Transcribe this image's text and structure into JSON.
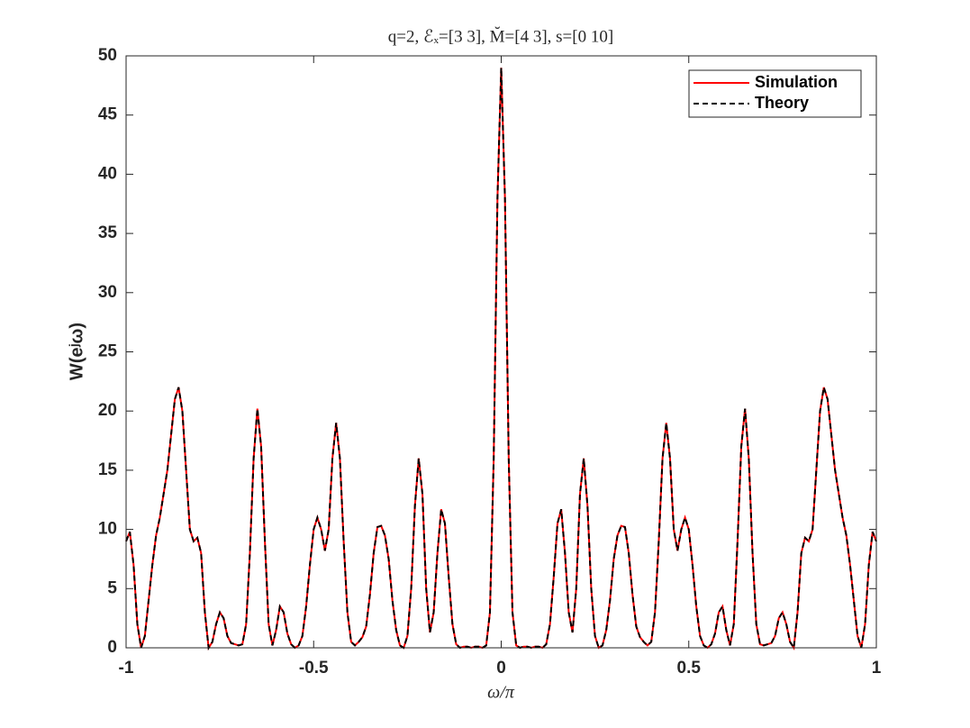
{
  "chart_data": {
    "type": "line",
    "title": "q=2, ℰₓ=[3 3], M̆=[4 3], s=[0 10]",
    "x_label": "ω/π",
    "y_label": "W(eʲω)",
    "xlim": [
      -1,
      1
    ],
    "ylim": [
      0,
      50
    ],
    "xticks": [
      -1,
      -0.5,
      0,
      0.5,
      1
    ],
    "yticks": [
      0,
      5,
      10,
      15,
      20,
      25,
      30,
      35,
      40,
      45,
      50
    ],
    "grid": false,
    "legend": "northeast",
    "x": [
      -1,
      -0.99,
      -0.98,
      -0.97,
      -0.96,
      -0.95,
      -0.94,
      -0.93,
      -0.92,
      -0.91,
      -0.9,
      -0.89,
      -0.88,
      -0.87,
      -0.86,
      -0.85,
      -0.84,
      -0.83,
      -0.82,
      -0.81,
      -0.8,
      -0.79,
      -0.78,
      -0.77,
      -0.76,
      -0.75,
      -0.74,
      -0.73,
      -0.72,
      -0.71,
      -0.7,
      -0.69,
      -0.68,
      -0.67,
      -0.66,
      -0.65,
      -0.64,
      -0.63,
      -0.62,
      -0.61,
      -0.6,
      -0.59,
      -0.58,
      -0.57,
      -0.56,
      -0.55,
      -0.54,
      -0.53,
      -0.52,
      -0.51,
      -0.5,
      -0.49,
      -0.48,
      -0.47,
      -0.46,
      -0.45,
      -0.44,
      -0.43,
      -0.42,
      -0.41,
      -0.4,
      -0.39,
      -0.38,
      -0.37,
      -0.36,
      -0.35,
      -0.34,
      -0.33,
      -0.32,
      -0.31,
      -0.3,
      -0.29,
      -0.28,
      -0.27,
      -0.26,
      -0.25,
      -0.24,
      -0.23,
      -0.22,
      -0.21,
      -0.2,
      -0.19,
      -0.18,
      -0.17,
      -0.16,
      -0.15,
      -0.14,
      -0.13,
      -0.12,
      -0.11,
      -0.1,
      -0.09,
      -0.08,
      -0.07,
      -0.06,
      -0.05,
      -0.04,
      -0.03,
      -0.02,
      -0.01,
      0,
      0.01,
      0.02,
      0.03,
      0.04,
      0.05,
      0.06,
      0.07,
      0.08,
      0.09,
      0.1,
      0.11,
      0.12,
      0.13,
      0.14,
      0.15,
      0.16,
      0.17,
      0.18,
      0.19,
      0.2,
      0.21,
      0.22,
      0.23,
      0.24,
      0.25,
      0.26,
      0.27,
      0.28,
      0.29,
      0.3,
      0.31,
      0.32,
      0.33,
      0.34,
      0.35,
      0.36,
      0.37,
      0.38,
      0.39,
      0.4,
      0.41,
      0.42,
      0.43,
      0.44,
      0.45,
      0.46,
      0.47,
      0.48,
      0.49,
      0.5,
      0.51,
      0.52,
      0.53,
      0.54,
      0.55,
      0.56,
      0.57,
      0.58,
      0.59,
      0.6,
      0.61,
      0.62,
      0.63,
      0.64,
      0.65,
      0.66,
      0.67,
      0.68,
      0.69,
      0.7,
      0.71,
      0.72,
      0.73,
      0.74,
      0.75,
      0.76,
      0.77,
      0.78,
      0.79,
      0.8,
      0.81,
      0.82,
      0.83,
      0.84,
      0.85,
      0.86,
      0.87,
      0.88,
      0.89,
      0.9,
      0.91,
      0.92,
      0.93,
      0.94,
      0.95,
      0.96,
      0.97,
      0.98,
      0.99,
      1
    ],
    "series": [
      {
        "name": "Simulation",
        "color": "#ff0000",
        "dash": "solid",
        "values": [
          9,
          9.8,
          7,
          2,
          0,
          1,
          4,
          7,
          9.5,
          11,
          13,
          15,
          18,
          21,
          22,
          20,
          15,
          10,
          9,
          9.3,
          8,
          3,
          0,
          0.5,
          2,
          3,
          2.5,
          1,
          0.4,
          0.3,
          0.2,
          0.3,
          2,
          8,
          16,
          20.2,
          17,
          9,
          2,
          0.2,
          1.5,
          3.5,
          3,
          1.2,
          0.3,
          0,
          0.2,
          1,
          3.5,
          7,
          10,
          11,
          10,
          8.2,
          10,
          16,
          19,
          16,
          9,
          3,
          0.5,
          0.2,
          0.5,
          0.9,
          1.8,
          4.5,
          8,
          10.2,
          10.3,
          9.5,
          7.5,
          4,
          1.5,
          0.2,
          0,
          1,
          5,
          12,
          16,
          13,
          5,
          1.3,
          3,
          8,
          11.7,
          10.5,
          6,
          2,
          0.3,
          0,
          0.1,
          0.1,
          0,
          0.1,
          0.1,
          0,
          0.2,
          3,
          16,
          38,
          49,
          38,
          16,
          3,
          0.2,
          0,
          0.1,
          0.1,
          0,
          0.1,
          0.1,
          0,
          0.3,
          2,
          6,
          10.5,
          11.7,
          8,
          3,
          1.3,
          5,
          13,
          16,
          12,
          5,
          1,
          0,
          0.2,
          1.5,
          4,
          7.5,
          9.5,
          10.3,
          10.2,
          8,
          4.5,
          1.8,
          0.9,
          0.5,
          0.2,
          0.5,
          3,
          9,
          16,
          19,
          16,
          10,
          8.2,
          10,
          11,
          10,
          7,
          3.5,
          1,
          0.2,
          0,
          0.3,
          1.2,
          3,
          3.5,
          1.5,
          0.2,
          2,
          9,
          17,
          20.2,
          16,
          8,
          2,
          0.3,
          0.2,
          0.3,
          0.4,
          1,
          2.5,
          3,
          2,
          0.5,
          0,
          3,
          8,
          9.3,
          9,
          10,
          15,
          20,
          22,
          21,
          18,
          15,
          13,
          11,
          9.5,
          7,
          4,
          1,
          0,
          2,
          7,
          9.8,
          9
        ]
      },
      {
        "name": "Theory",
        "color": "#000000",
        "dash": "dashed",
        "values": [
          9,
          9.8,
          7,
          2,
          0,
          1,
          4,
          7,
          9.5,
          11,
          13,
          15,
          18,
          21,
          22,
          20,
          15,
          10,
          9,
          9.3,
          8,
          3,
          0,
          0.5,
          2,
          3,
          2.5,
          1,
          0.4,
          0.3,
          0.2,
          0.3,
          2,
          8,
          16,
          20.2,
          17,
          9,
          2,
          0.2,
          1.5,
          3.5,
          3,
          1.2,
          0.3,
          0,
          0.2,
          1,
          3.5,
          7,
          10,
          11,
          10,
          8.2,
          10,
          16,
          19,
          16,
          9,
          3,
          0.5,
          0.2,
          0.5,
          0.9,
          1.8,
          4.5,
          8,
          10.2,
          10.3,
          9.5,
          7.5,
          4,
          1.5,
          0.2,
          0,
          1,
          5,
          12,
          16,
          13,
          5,
          1.3,
          3,
          8,
          11.7,
          10.5,
          6,
          2,
          0.3,
          0,
          0.1,
          0.1,
          0,
          0.1,
          0.1,
          0,
          0.2,
          3,
          16,
          38,
          49,
          38,
          16,
          3,
          0.2,
          0,
          0.1,
          0.1,
          0,
          0.1,
          0.1,
          0,
          0.3,
          2,
          6,
          10.5,
          11.7,
          8,
          3,
          1.3,
          5,
          13,
          16,
          12,
          5,
          1,
          0,
          0.2,
          1.5,
          4,
          7.5,
          9.5,
          10.3,
          10.2,
          8,
          4.5,
          1.8,
          0.9,
          0.5,
          0.2,
          0.5,
          3,
          9,
          16,
          19,
          16,
          10,
          8.2,
          10,
          11,
          10,
          7,
          3.5,
          1,
          0.2,
          0,
          0.3,
          1.2,
          3,
          3.5,
          1.5,
          0.2,
          2,
          9,
          17,
          20.2,
          16,
          8,
          2,
          0.3,
          0.2,
          0.3,
          0.4,
          1,
          2.5,
          3,
          2,
          0.5,
          0,
          3,
          8,
          9.3,
          9,
          10,
          15,
          20,
          22,
          21,
          18,
          15,
          13,
          11,
          9.5,
          7,
          4,
          1,
          0,
          2,
          7,
          9.8,
          9
        ]
      }
    ]
  }
}
